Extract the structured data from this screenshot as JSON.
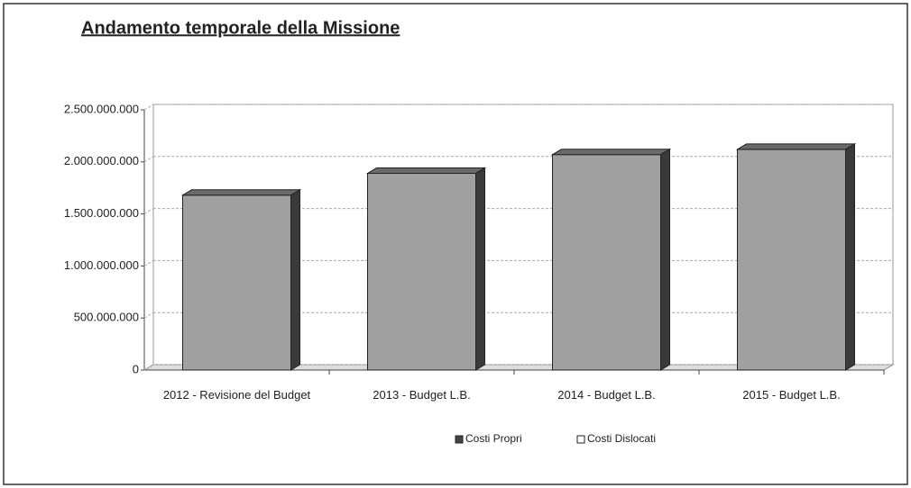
{
  "chart_data": {
    "type": "bar3d",
    "title": "Andamento temporale della Missione",
    "categories": [
      "2012 - Revisione del Budget",
      "2013 - Budget L.B.",
      "2014 - Budget L.B.",
      "2015 - Budget L.B."
    ],
    "series": [
      {
        "name": "Costi Propri",
        "color": "#a0a0a0",
        "values": [
          1680000000,
          1890000000,
          2070000000,
          2120000000
        ]
      },
      {
        "name": "Costi Dislocati",
        "color": "#ffffff",
        "values": [
          null,
          null,
          null,
          null
        ]
      }
    ],
    "ylim": [
      0,
      2500000000
    ],
    "yticks": [
      0,
      {
        "value": 500000000,
        "label": "500.000.000"
      },
      {
        "value": 1000000000,
        "label": "1.000.000.000"
      },
      {
        "value": 1500000000,
        "label": "1.500.000.000"
      },
      {
        "value": 2000000000,
        "label": "2.000.000.000"
      },
      {
        "value": 2500000000,
        "label": "2.500.000.000"
      }
    ],
    "grid": true
  }
}
